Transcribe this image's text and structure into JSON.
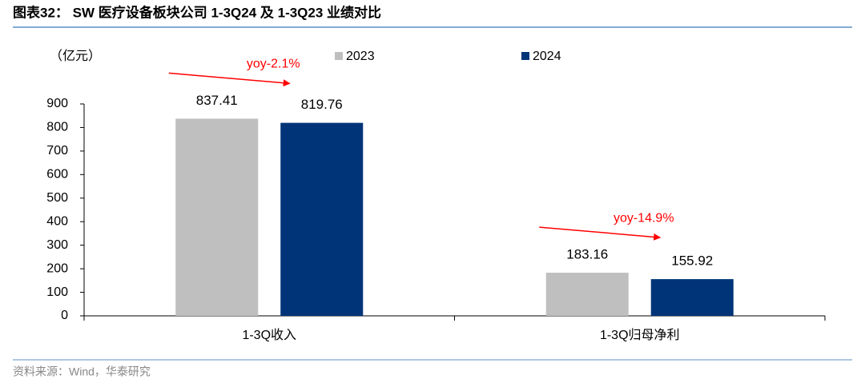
{
  "chart_data": {
    "type": "bar",
    "title": "图表32： SW 医疗设备板块公司 1-3Q24 及 1-3Q23 业绩对比",
    "y_label": "（亿元）",
    "categories": [
      "1-3Q收入",
      "1-3Q归母净利"
    ],
    "series": [
      {
        "name": "2023",
        "color": "#bfbfbf",
        "values": [
          837.41,
          183.16
        ]
      },
      {
        "name": "2024",
        "color": "#003478",
        "values": [
          819.76,
          155.92
        ]
      }
    ],
    "annotations": [
      "yoy-2.1%",
      "yoy-14.9%"
    ],
    "annotation_color": "#ff0000",
    "ylim": [
      0,
      900
    ],
    "yticks": [
      0,
      100,
      200,
      300,
      400,
      500,
      600,
      700,
      800,
      900
    ],
    "source": "资料来源：Wind，华泰研究"
  }
}
